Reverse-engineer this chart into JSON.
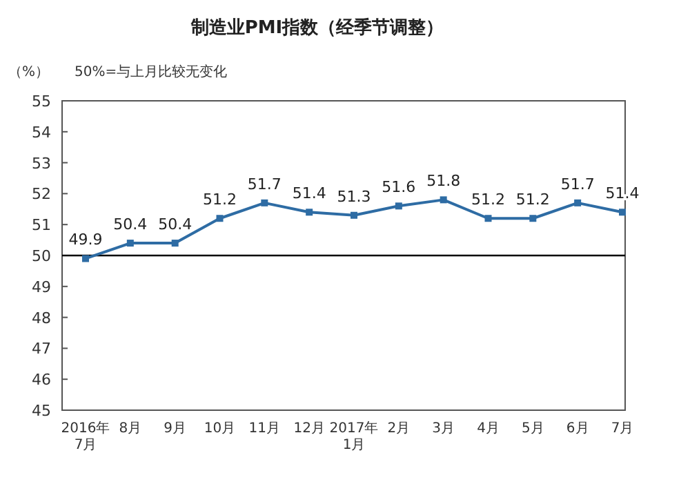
{
  "chart_data": {
    "type": "line",
    "title": "制造业PMI指数（经季节调整）",
    "ylabel": "（%）",
    "annotations": [
      "50%=与上月比较无变化"
    ],
    "categories": [
      "2016年\n7月",
      "8月",
      "9月",
      "10月",
      "11月",
      "12月",
      "2017年\n1月",
      "2月",
      "3月",
      "4月",
      "5月",
      "6月",
      "7月"
    ],
    "series": [
      {
        "color": "#2e6ca4",
        "values": [
          49.9,
          50.4,
          50.4,
          51.2,
          51.7,
          51.4,
          51.3,
          51.6,
          51.8,
          51.2,
          51.2,
          51.7,
          51.4
        ]
      }
    ],
    "ylim": [
      45,
      55
    ],
    "yticks": [
      45,
      46,
      47,
      48,
      49,
      50,
      51,
      52,
      53,
      54,
      55
    ],
    "ref_lines": [
      {
        "axis": "y",
        "value": 50,
        "color": "#000000"
      }
    ],
    "data_labels": true,
    "marker": "square",
    "line_style": "solid",
    "grid": false
  }
}
